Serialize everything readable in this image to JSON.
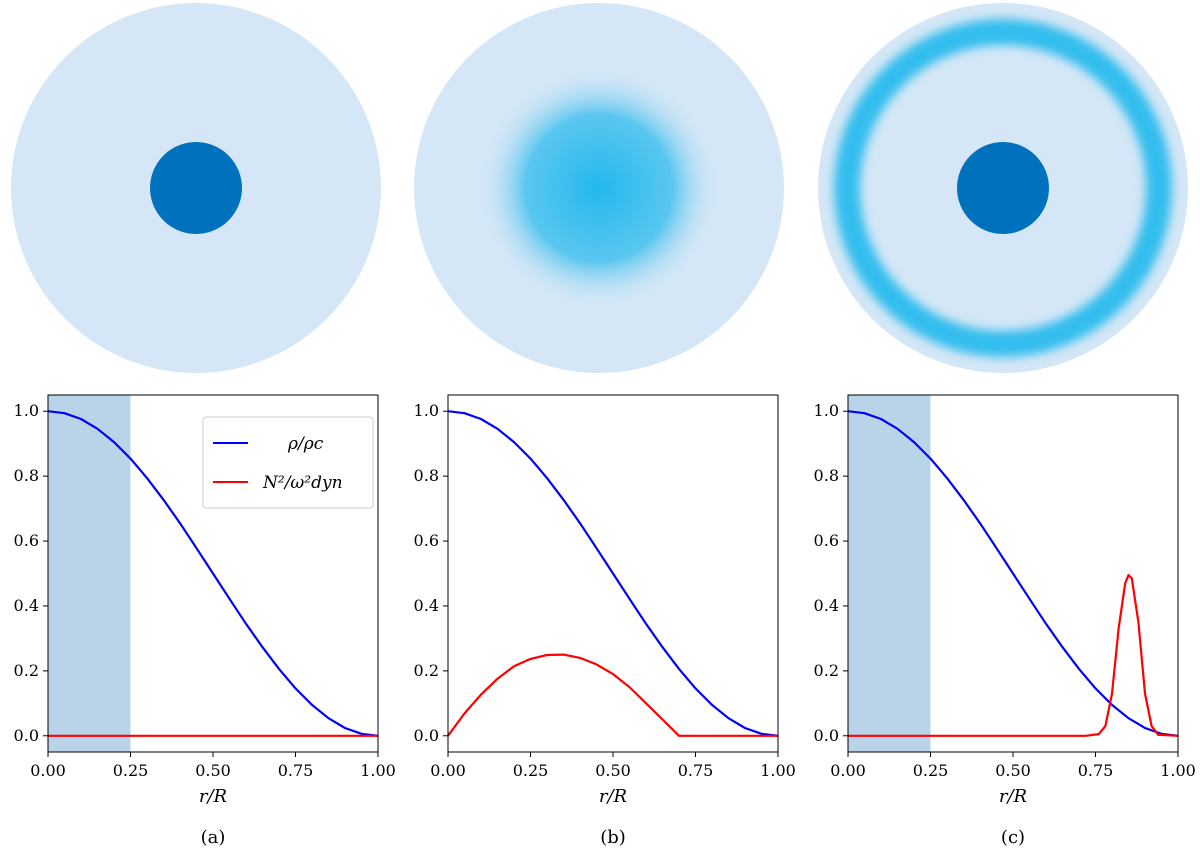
{
  "colors": {
    "density": "#0000ff",
    "buoyancy": "#ff0000",
    "core_shade": "#b9d4e8",
    "disk_fill": "#d5e7f6",
    "core_disk": "#0072bd",
    "stratified_glow": "#22b8ec"
  },
  "legend": {
    "density_label": "ρ/ρc",
    "buoyancy_label": "N²/ω²dyn"
  },
  "chart_data": [
    {
      "type": "line",
      "panel_label": "(a)",
      "xlabel": "r/R",
      "ylabel": "",
      "xlim": [
        0,
        1
      ],
      "ylim": [
        -0.05,
        1.05
      ],
      "x_ticks": [
        "0.00",
        "0.25",
        "0.50",
        "0.75",
        "1.00"
      ],
      "y_ticks": [
        "0.0",
        "0.2",
        "0.4",
        "0.6",
        "0.8",
        "1.0"
      ],
      "shaded_region": [
        0,
        0.25
      ],
      "legend": true,
      "series": [
        {
          "name": "ρ/ρc",
          "color": "#0000ff",
          "x": [
            0,
            0.05,
            0.1,
            0.15,
            0.2,
            0.25,
            0.3,
            0.35,
            0.4,
            0.45,
            0.5,
            0.55,
            0.6,
            0.65,
            0.7,
            0.75,
            0.8,
            0.85,
            0.9,
            0.95,
            1.0
          ],
          "y": [
            1.0,
            0.994,
            0.976,
            0.946,
            0.905,
            0.854,
            0.794,
            0.727,
            0.655,
            0.578,
            0.5,
            0.422,
            0.345,
            0.273,
            0.206,
            0.146,
            0.095,
            0.054,
            0.024,
            0.006,
            0.0
          ]
        },
        {
          "name": "N²/ω²dyn",
          "color": "#ff0000",
          "x": [
            0,
            1.0
          ],
          "y": [
            0,
            0
          ]
        }
      ]
    },
    {
      "type": "line",
      "panel_label": "(b)",
      "xlabel": "r/R",
      "ylabel": "",
      "xlim": [
        0,
        1
      ],
      "ylim": [
        -0.05,
        1.05
      ],
      "x_ticks": [
        "0.00",
        "0.25",
        "0.50",
        "0.75",
        "1.00"
      ],
      "y_ticks": [
        "0.0",
        "0.2",
        "0.4",
        "0.6",
        "0.8",
        "1.0"
      ],
      "shaded_region": null,
      "legend": false,
      "series": [
        {
          "name": "ρ/ρc",
          "color": "#0000ff",
          "x": [
            0,
            0.05,
            0.1,
            0.15,
            0.2,
            0.25,
            0.3,
            0.35,
            0.4,
            0.45,
            0.5,
            0.55,
            0.6,
            0.65,
            0.7,
            0.75,
            0.8,
            0.85,
            0.9,
            0.95,
            1.0
          ],
          "y": [
            1.0,
            0.994,
            0.976,
            0.946,
            0.905,
            0.854,
            0.794,
            0.727,
            0.655,
            0.578,
            0.5,
            0.422,
            0.345,
            0.273,
            0.206,
            0.146,
            0.095,
            0.054,
            0.024,
            0.006,
            0.0
          ]
        },
        {
          "name": "N²/ω²dyn",
          "color": "#ff0000",
          "x": [
            0,
            0.05,
            0.1,
            0.15,
            0.2,
            0.25,
            0.3,
            0.35,
            0.4,
            0.45,
            0.5,
            0.55,
            0.6,
            0.65,
            0.7,
            0.75,
            0.8,
            0.85,
            0.9,
            0.95,
            1.0
          ],
          "y": [
            0,
            0.069,
            0.127,
            0.176,
            0.214,
            0.237,
            0.249,
            0.25,
            0.24,
            0.22,
            0.19,
            0.15,
            0.1,
            0.05,
            0.0,
            0,
            0,
            0,
            0,
            0,
            0
          ]
        }
      ]
    },
    {
      "type": "line",
      "panel_label": "(c)",
      "xlabel": "r/R",
      "ylabel": "",
      "xlim": [
        0,
        1
      ],
      "ylim": [
        -0.05,
        1.05
      ],
      "x_ticks": [
        "0.00",
        "0.25",
        "0.50",
        "0.75",
        "1.00"
      ],
      "y_ticks": [
        "0.0",
        "0.2",
        "0.4",
        "0.6",
        "0.8",
        "1.0"
      ],
      "shaded_region": [
        0,
        0.25
      ],
      "legend": false,
      "series": [
        {
          "name": "ρ/ρc",
          "color": "#0000ff",
          "x": [
            0,
            0.05,
            0.1,
            0.15,
            0.2,
            0.25,
            0.3,
            0.35,
            0.4,
            0.45,
            0.5,
            0.55,
            0.6,
            0.65,
            0.7,
            0.75,
            0.8,
            0.85,
            0.9,
            0.95,
            1.0
          ],
          "y": [
            1.0,
            0.994,
            0.976,
            0.946,
            0.905,
            0.854,
            0.794,
            0.727,
            0.655,
            0.578,
            0.5,
            0.422,
            0.345,
            0.273,
            0.206,
            0.146,
            0.095,
            0.054,
            0.024,
            0.006,
            0.0
          ]
        },
        {
          "name": "N²/ω²dyn",
          "color": "#ff0000",
          "x": [
            0,
            0.72,
            0.76,
            0.78,
            0.8,
            0.82,
            0.84,
            0.85,
            0.86,
            0.88,
            0.9,
            0.92,
            0.94,
            1.0
          ],
          "y": [
            0,
            0,
            0.005,
            0.03,
            0.13,
            0.33,
            0.47,
            0.495,
            0.485,
            0.35,
            0.13,
            0.03,
            0.003,
            0
          ]
        }
      ]
    }
  ]
}
